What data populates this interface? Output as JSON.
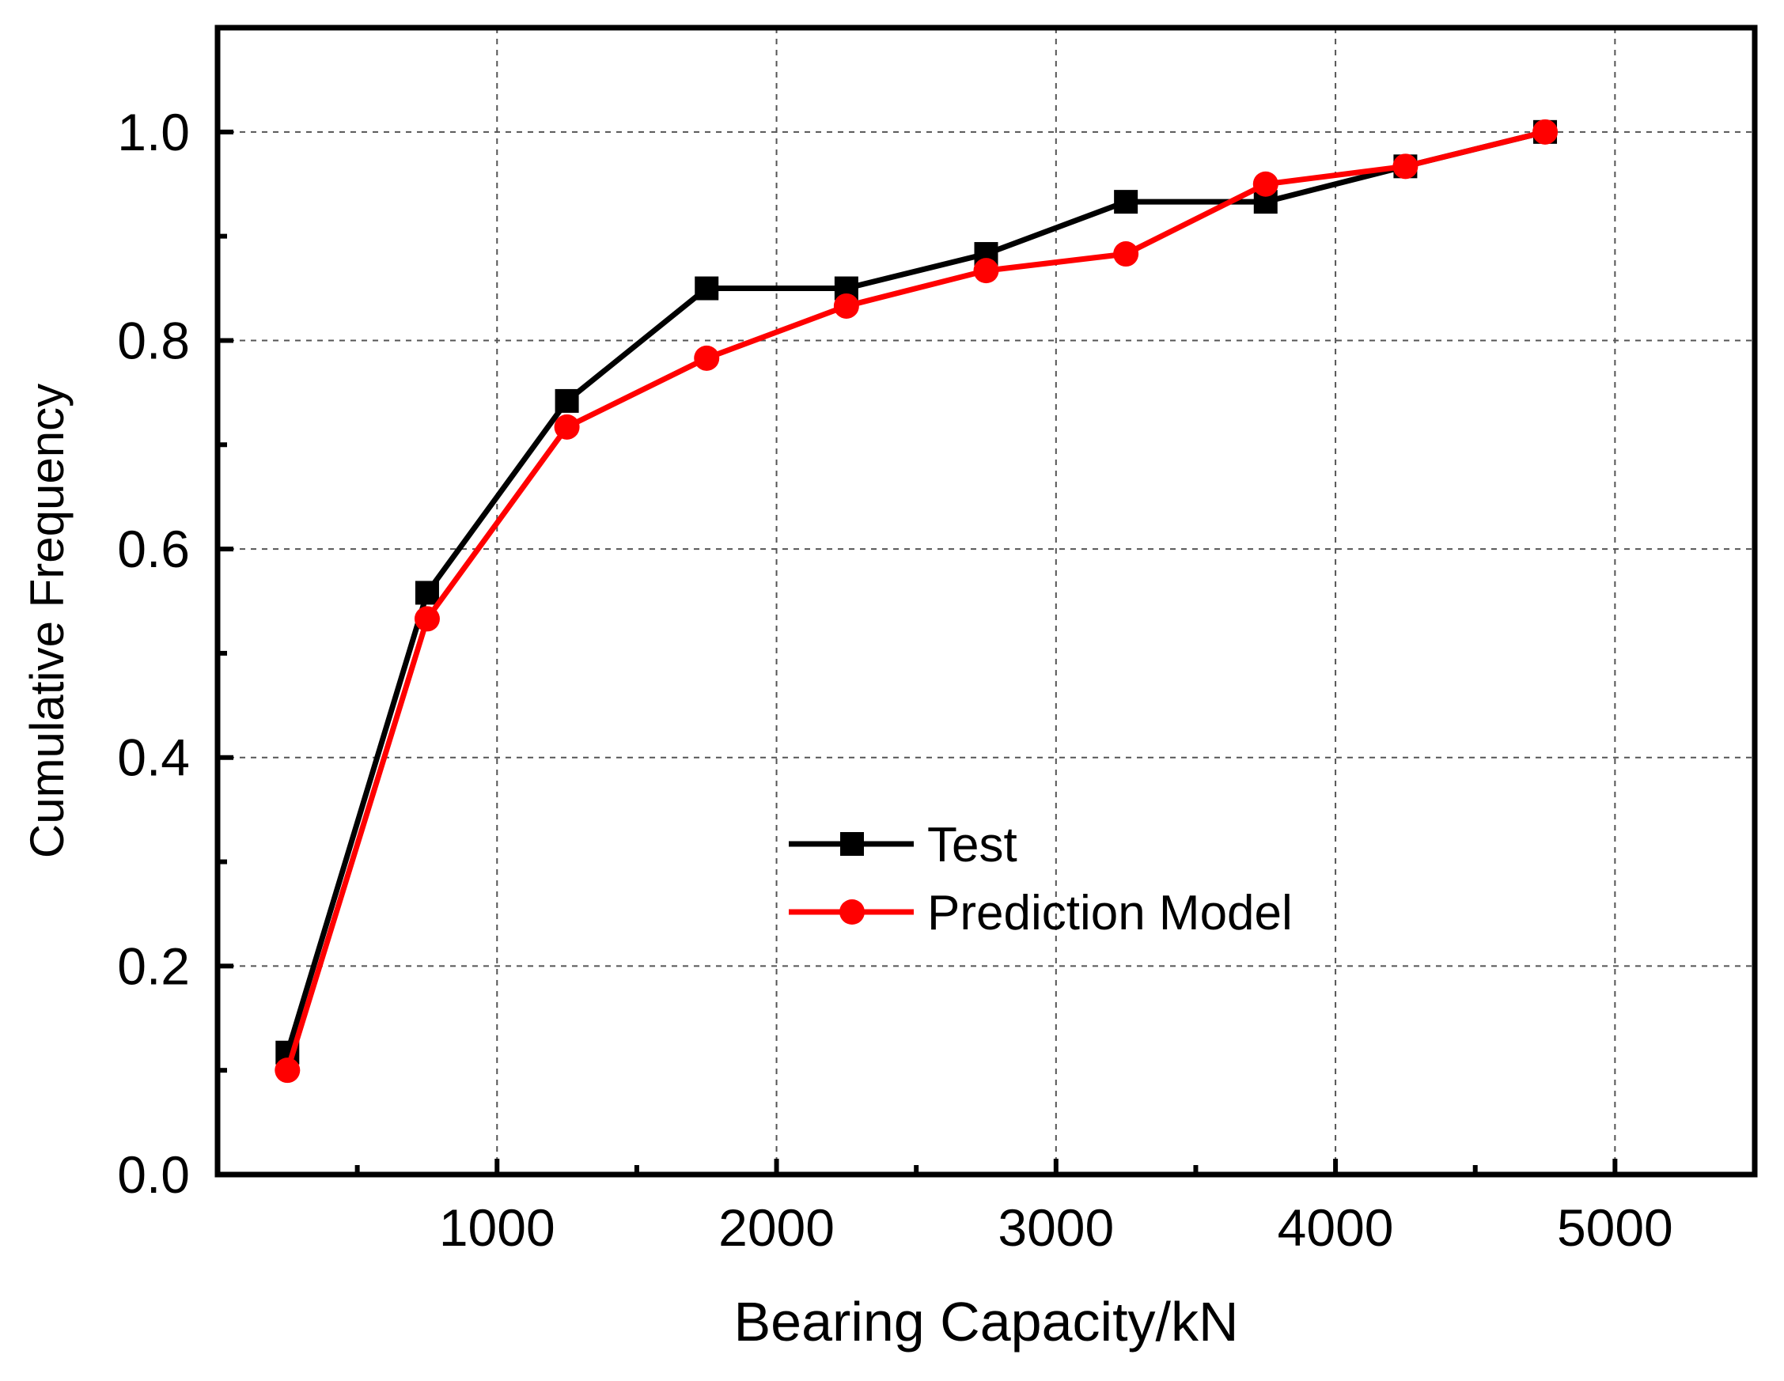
{
  "chart_data": {
    "type": "line",
    "title": "",
    "xlabel": "Bearing Capacity/kN",
    "ylabel": "Cumulative Frequency",
    "xlim": [
      0,
      5500
    ],
    "ylim": [
      0.0,
      1.1
    ],
    "xticks": [
      1000,
      2000,
      3000,
      4000,
      5000
    ],
    "xtick_labels": [
      "1000",
      "2000",
      "3000",
      "4000",
      "5000"
    ],
    "xminor_ticks": [
      500,
      1500,
      2500,
      3500,
      4500
    ],
    "yticks": [
      0.0,
      0.2,
      0.4,
      0.6,
      0.8,
      1.0
    ],
    "ytick_labels": [
      "0.0",
      "0.2",
      "0.4",
      "0.6",
      "0.8",
      "1.0"
    ],
    "yminor_ticks": [
      0.1,
      0.3,
      0.5,
      0.7,
      0.9
    ],
    "grid": true,
    "legend_position": "center",
    "series": [
      {
        "name": "Test",
        "color": "#000000",
        "marker": "square",
        "x": [
          250,
          750,
          1250,
          1750,
          2250,
          2750,
          3250,
          3750,
          4250,
          4750
        ],
        "y": [
          0.117,
          0.558,
          0.742,
          0.85,
          0.85,
          0.883,
          0.933,
          0.933,
          0.967,
          1.0
        ]
      },
      {
        "name": "Prediction Model",
        "color": "#ff0000",
        "marker": "circle",
        "x": [
          250,
          750,
          1250,
          1750,
          2250,
          2750,
          3250,
          3750,
          4250,
          4750
        ],
        "y": [
          0.1,
          0.533,
          0.717,
          0.783,
          0.833,
          0.867,
          0.883,
          0.95,
          0.967,
          1.0
        ]
      }
    ]
  }
}
